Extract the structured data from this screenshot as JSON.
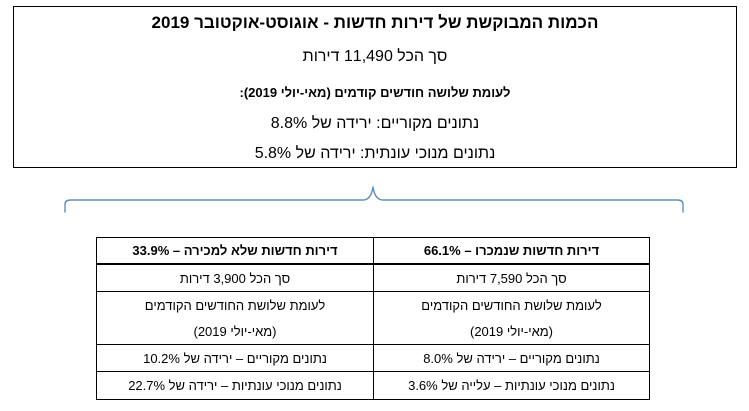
{
  "summary": {
    "title": "הכמות המבוקשת של דירות חדשות - אוגוסט-אוקטובר 2019",
    "total": "סך הכל 11,490 דירות",
    "comparison_heading": "לעומת שלושה חודשים קודמים (מאי-יולי 2019):",
    "raw_data": "נתונים מקוריים: ירידה של 8.8%",
    "seasonal_data": "נתונים מנוכי עונתית: ירידה של 5.8%"
  },
  "table": {
    "sold": {
      "header": "דירות חדשות שנמכרו – 66.1%",
      "total": "סך הכל 7,590 דירות",
      "comparison": "לעומת שלושת החודשים הקודמים",
      "period": "(מאי-יולי 2019)",
      "raw_data": "נתונים מקוריים – ירידה של 8.0%",
      "seasonal_data": "נתונים מנוכי עונתיות – עלייה של 3.6%"
    },
    "unsold": {
      "header": "דירות חדשות שלא למכירה – 33.9%",
      "total": "סך הכל 3,900 דירות",
      "comparison": "לעומת שלושת החודשים הקודמים",
      "period": "(מאי-יולי 2019)",
      "raw_data": "נתונים מקוריים – ירידה של 10.2%",
      "seasonal_data": "נתונים מנוכי עונתיות – ירידה של 22.7%"
    }
  },
  "colors": {
    "brace": "#5b8fc7",
    "border": "#000000"
  }
}
